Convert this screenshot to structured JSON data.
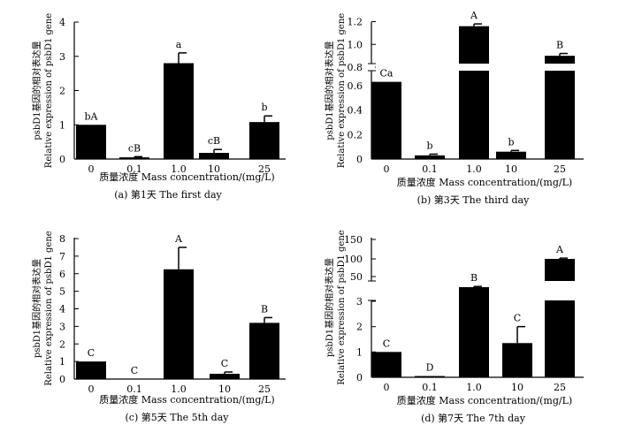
{
  "chart_data": [
    {
      "type": "bar",
      "panel": "(a)",
      "title": "(a) 第1天 The first day",
      "xlabel": "质量浓度 Mass concentration/(mg/L)",
      "ylabel_cn": "psbD1基因的相对表达量",
      "ylabel_en": "Relative expression of psbD1 gene",
      "categories": [
        "0",
        "0.1",
        "1.0",
        "10",
        "25"
      ],
      "values": [
        1.0,
        0.05,
        2.8,
        0.18,
        1.08
      ],
      "errors": [
        0.0,
        0.02,
        0.3,
        0.1,
        0.18
      ],
      "labels": [
        "bA",
        "cB",
        "a",
        "cB",
        "b"
      ],
      "ylim": [
        0,
        4
      ],
      "yticks": [
        "0",
        "1",
        "2",
        "3",
        "4"
      ]
    },
    {
      "type": "bar",
      "panel": "(b)",
      "title": "(b) 第3天 The third day",
      "xlabel": "质量浓度 Mass concentration/(mg/L)",
      "ylabel_cn": "psbD1基因的相对表达量",
      "ylabel_en": "Relative expression of psbD1 gene",
      "categories": [
        "0",
        "0.1",
        "1.0",
        "10",
        "25"
      ],
      "values": [
        0.63,
        0.03,
        1.16,
        0.06,
        0.9
      ],
      "errors": [
        0.0,
        0.01,
        0.02,
        0.01,
        0.02
      ],
      "labels": [
        "Ca",
        "b",
        "A",
        "b",
        "B"
      ],
      "axis_break": [
        0.75,
        0.8
      ],
      "ylim": [
        0,
        1.2
      ],
      "yticks": [
        "0",
        "0.2",
        "0.4",
        "0.6",
        "0.8",
        "1.0",
        "1.2"
      ]
    },
    {
      "type": "bar",
      "panel": "(c)",
      "title": "(c) 第5天 The 5th day",
      "xlabel": "质量浓度 Mass concentration/(mg/L)",
      "ylabel_cn": "psbD1基因的相对表达量",
      "ylabel_en": "Relative expression of psbD1 gene",
      "categories": [
        "0",
        "0.1",
        "1.0",
        "10",
        "25"
      ],
      "values": [
        1.0,
        0.0,
        6.25,
        0.3,
        3.2
      ],
      "errors": [
        0.0,
        0.0,
        1.25,
        0.1,
        0.3
      ],
      "labels": [
        "C",
        "C",
        "A",
        "C",
        "B"
      ],
      "ylim": [
        0,
        8
      ],
      "yticks": [
        "0",
        "1",
        "2",
        "3",
        "4",
        "5",
        "6",
        "7",
        "8"
      ]
    },
    {
      "type": "bar",
      "panel": "(d)",
      "title": "(d) 第7天 The 7th day",
      "xlabel": "质量浓度 Mass concentration/(mg/L)",
      "ylabel_cn": "psbD1基因的相对表达量",
      "ylabel_en": "Relative expression of psbD1 gene",
      "categories": [
        "0",
        "0.1",
        "1.0",
        "10",
        "25"
      ],
      "values": [
        1.0,
        0.05,
        20,
        1.35,
        100
      ],
      "errors": [
        0.0,
        0.0,
        2,
        0.65,
        2
      ],
      "labels": [
        "C",
        "D",
        "B",
        "C",
        "A"
      ],
      "axis_break": [
        3,
        10
      ],
      "ylim": [
        0,
        150
      ],
      "yticks": [
        "0",
        "1",
        "2",
        "3",
        "50",
        "100",
        "150"
      ]
    }
  ]
}
